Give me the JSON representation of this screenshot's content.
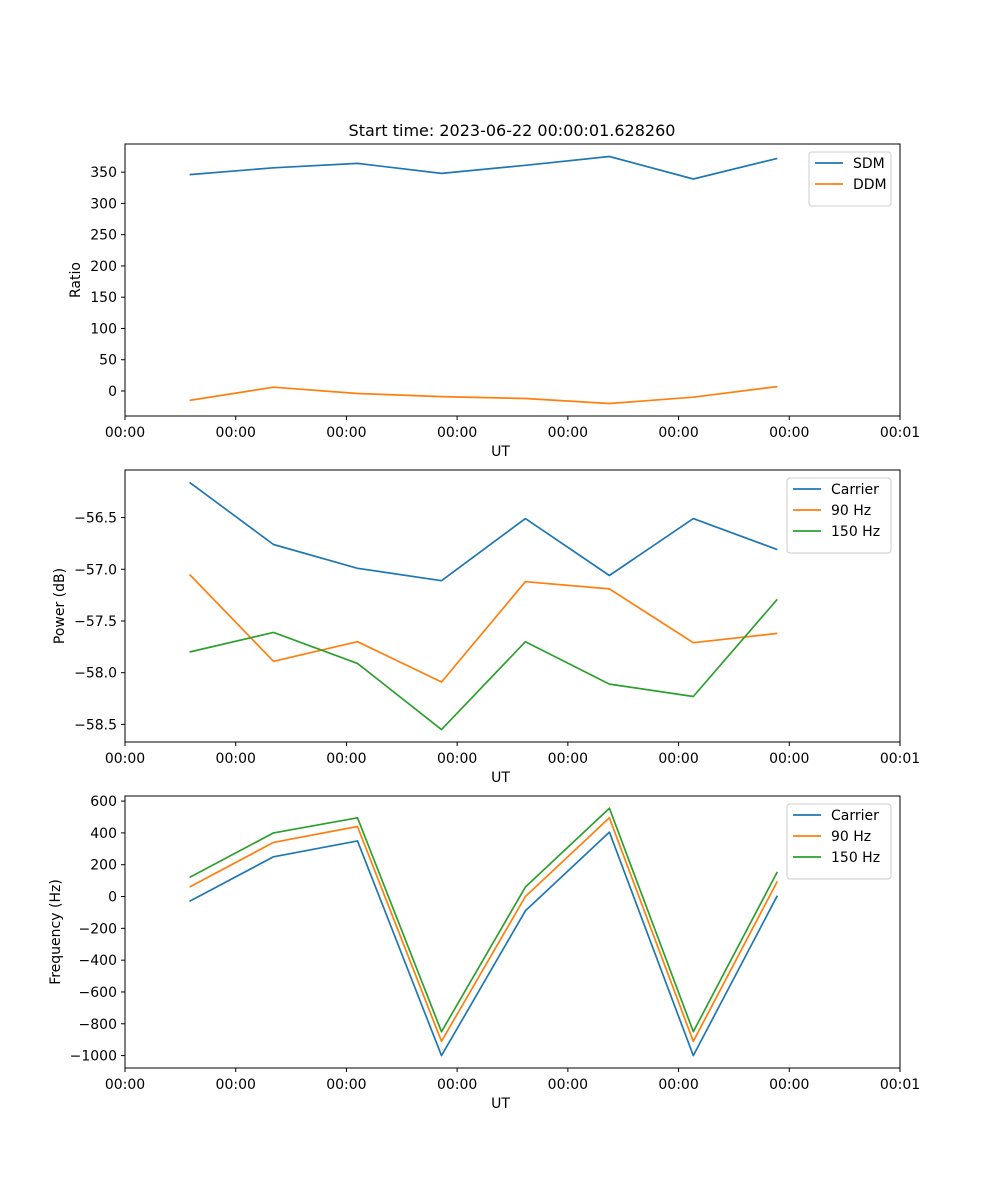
{
  "figure": {
    "title": "Start time: 2023-06-22 00:00:01.628260"
  },
  "chart_data": [
    {
      "type": "line",
      "xlabel": "UT",
      "ylabel": "Ratio",
      "xtick_labels": [
        "00:00",
        "00:00",
        "00:00",
        "00:00",
        "00:00",
        "00:00",
        "00:00",
        "00:01"
      ],
      "xlim": [
        0,
        6
      ],
      "x": [
        0.5,
        1.15,
        1.8,
        2.45,
        3.1,
        3.75,
        4.4,
        5.05
      ],
      "ylim": [
        -40,
        395
      ],
      "yticks": [
        0,
        50,
        100,
        150,
        200,
        250,
        300,
        350
      ],
      "grid": false,
      "legend_position": "top-right",
      "series": [
        {
          "name": "SDM",
          "color": "#1f77b4",
          "values": [
            346,
            357,
            364,
            348,
            361,
            375,
            339,
            372
          ]
        },
        {
          "name": "DDM",
          "color": "#ff7f0e",
          "values": [
            -15,
            6,
            -4,
            -9,
            -12,
            -20,
            -10,
            7
          ]
        }
      ]
    },
    {
      "type": "line",
      "xlabel": "UT",
      "ylabel": "Power (dB)",
      "xtick_labels": [
        "00:00",
        "00:00",
        "00:00",
        "00:00",
        "00:00",
        "00:00",
        "00:00",
        "00:01"
      ],
      "xlim": [
        0,
        6
      ],
      "x": [
        0.5,
        1.15,
        1.8,
        2.45,
        3.1,
        3.75,
        4.4,
        5.05
      ],
      "ylim": [
        -58.67,
        -56.04
      ],
      "yticks": [
        -58.5,
        -58.0,
        -57.5,
        -57.0,
        -56.5
      ],
      "ytick_labels": [
        "−58.5",
        "−58.0",
        "−57.5",
        "−57.0",
        "−56.5"
      ],
      "grid": false,
      "legend_position": "top-right",
      "series": [
        {
          "name": "Carrier",
          "color": "#1f77b4",
          "values": [
            -56.16,
            -56.76,
            -56.99,
            -57.11,
            -56.51,
            -57.06,
            -56.51,
            -56.81
          ]
        },
        {
          "name": "90 Hz",
          "color": "#ff7f0e",
          "values": [
            -57.05,
            -57.89,
            -57.7,
            -58.09,
            -57.12,
            -57.19,
            -57.71,
            -57.62
          ]
        },
        {
          "name": "150 Hz",
          "color": "#2ca02c",
          "values": [
            -57.8,
            -57.61,
            -57.91,
            -58.55,
            -57.7,
            -58.11,
            -58.23,
            -57.29
          ]
        }
      ]
    },
    {
      "type": "line",
      "xlabel": "UT",
      "ylabel": "Frequency (Hz)",
      "xtick_labels": [
        "00:00",
        "00:00",
        "00:00",
        "00:00",
        "00:00",
        "00:00",
        "00:00",
        "00:01"
      ],
      "xlim": [
        0,
        6
      ],
      "x": [
        0.5,
        1.15,
        1.8,
        2.45,
        3.1,
        3.75,
        4.4,
        5.05
      ],
      "ylim": [
        -1078,
        632
      ],
      "yticks": [
        -1000,
        -800,
        -600,
        -400,
        -200,
        0,
        200,
        400,
        600
      ],
      "ytick_labels": [
        "−1000",
        "−800",
        "−600",
        "−400",
        "−200",
        "0",
        "200",
        "400",
        "600"
      ],
      "grid": false,
      "legend_position": "top-right",
      "series": [
        {
          "name": "Carrier",
          "color": "#1f77b4",
          "values": [
            -30,
            250,
            350,
            -1000,
            -90,
            405,
            -1000,
            5
          ]
        },
        {
          "name": "90 Hz",
          "color": "#ff7f0e",
          "values": [
            60,
            340,
            440,
            -910,
            0,
            495,
            -910,
            95
          ]
        },
        {
          "name": "150 Hz",
          "color": "#2ca02c",
          "values": [
            120,
            400,
            495,
            -850,
            60,
            555,
            -850,
            155
          ]
        }
      ]
    }
  ]
}
